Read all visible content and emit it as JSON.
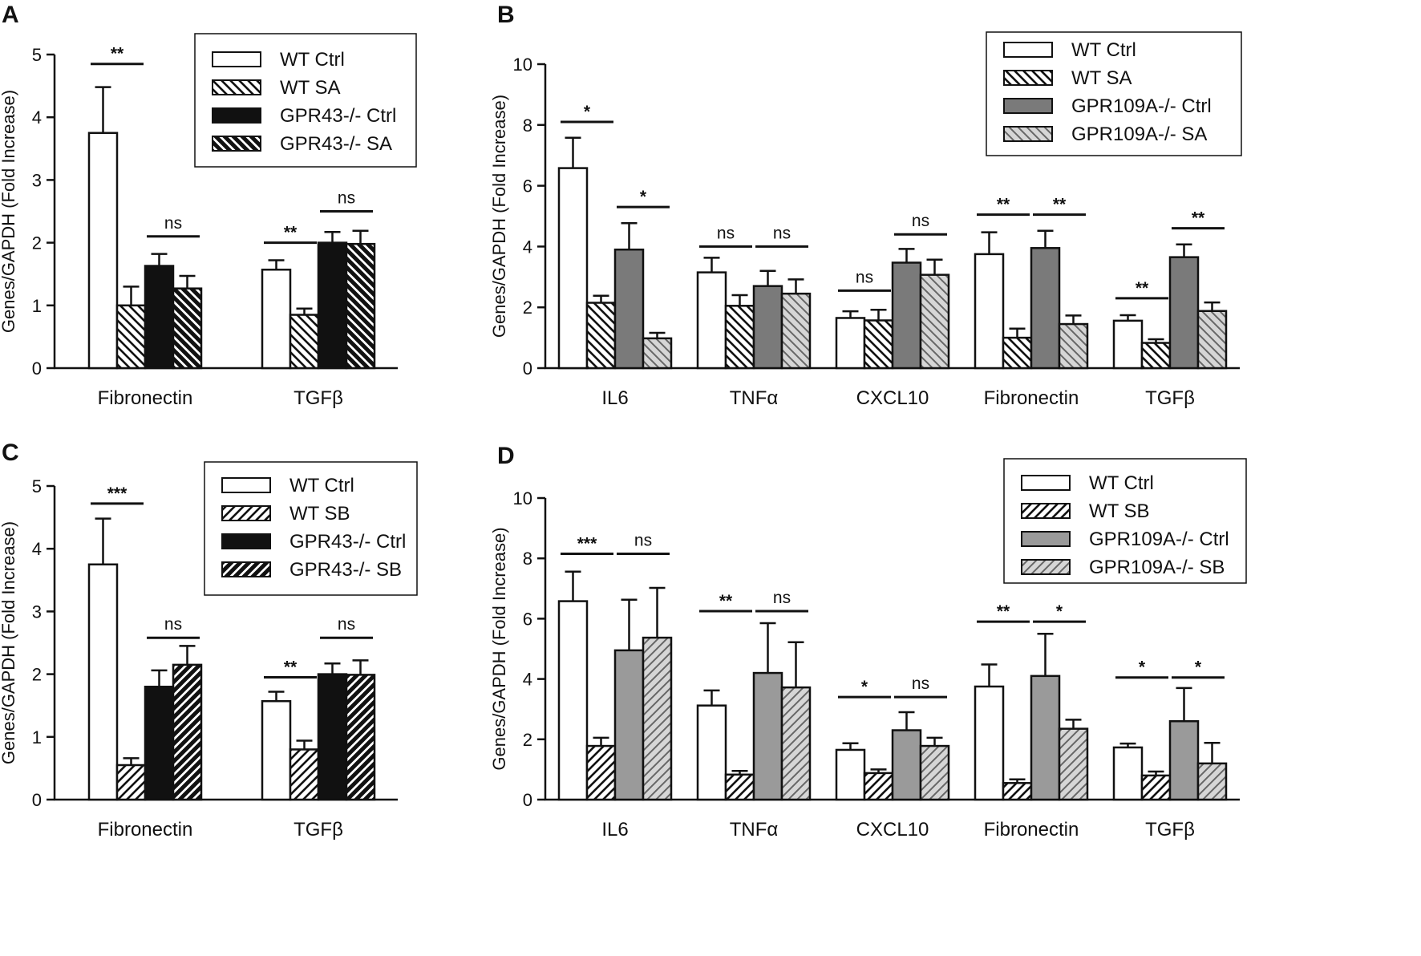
{
  "chart_data": [
    {
      "panel": "A",
      "type": "bar",
      "ylabel": "Genes/GAPDH (Fold Increase)",
      "ylim": [
        0,
        5
      ],
      "yticks": [
        0,
        1,
        2,
        3,
        4,
        5
      ],
      "categories": [
        "Fibronectin",
        "TGFβ"
      ],
      "legend_position": "top-right",
      "series": [
        {
          "name": "WT Ctrl",
          "style": "white",
          "values": [
            3.75,
            1.57
          ],
          "errors": [
            0.73,
            0.15
          ]
        },
        {
          "name": "WT SA",
          "style": "hatch-back",
          "values": [
            1.0,
            0.85
          ],
          "errors": [
            0.3,
            0.1
          ]
        },
        {
          "name": "GPR43-/- Ctrl",
          "style": "black",
          "values": [
            1.63,
            2.0
          ],
          "errors": [
            0.19,
            0.17
          ]
        },
        {
          "name": "GPR43-/- SA",
          "style": "hatch-back-black",
          "values": [
            1.27,
            1.98
          ],
          "errors": [
            0.2,
            0.21
          ]
        }
      ],
      "significance": [
        {
          "category": 0,
          "from": 0,
          "to": 1,
          "label": "**",
          "y": 4.85
        },
        {
          "category": 0,
          "from": 2,
          "to": 3,
          "label": "ns",
          "y": 2.1
        },
        {
          "category": 1,
          "from": 0,
          "to": 1,
          "label": "**",
          "y": 2.0
        },
        {
          "category": 1,
          "from": 2,
          "to": 3,
          "label": "ns",
          "y": 2.5
        }
      ]
    },
    {
      "panel": "B",
      "type": "bar",
      "ylabel": "Genes/GAPDH (Fold Increase)",
      "ylim": [
        0,
        10
      ],
      "yticks": [
        0,
        2,
        4,
        6,
        8,
        10
      ],
      "categories": [
        "IL6",
        "TNFα",
        "CXCL10",
        "Fibronectin",
        "TGFβ"
      ],
      "legend_position": "top-right",
      "series": [
        {
          "name": "WT Ctrl",
          "style": "white",
          "values": [
            6.58,
            3.15,
            1.65,
            3.75,
            1.56
          ],
          "errors": [
            1.0,
            0.48,
            0.22,
            0.72,
            0.18
          ]
        },
        {
          "name": "WT SA",
          "style": "hatch-back",
          "values": [
            2.15,
            2.05,
            1.57,
            1.0,
            0.83
          ],
          "errors": [
            0.23,
            0.35,
            0.35,
            0.3,
            0.12
          ]
        },
        {
          "name": "GPR109A-/- Ctrl",
          "style": "darkgray",
          "values": [
            3.9,
            2.7,
            3.47,
            3.95,
            3.65
          ],
          "errors": [
            0.87,
            0.5,
            0.45,
            0.57,
            0.42
          ]
        },
        {
          "name": "GPR109A-/- SA",
          "style": "hatch-back-lightgray",
          "values": [
            0.98,
            2.45,
            3.07,
            1.45,
            1.88
          ],
          "errors": [
            0.18,
            0.47,
            0.5,
            0.28,
            0.28
          ]
        }
      ],
      "significance": [
        {
          "category": 0,
          "from": 0,
          "to": 1,
          "label": "*",
          "y": 8.1
        },
        {
          "category": 0,
          "from": 2,
          "to": 3,
          "label": "*",
          "y": 5.3
        },
        {
          "category": 1,
          "from": 0,
          "to": 1,
          "label": "ns",
          "y": 4.0
        },
        {
          "category": 1,
          "from": 2,
          "to": 3,
          "label": "ns",
          "y": 4.0
        },
        {
          "category": 2,
          "from": 0,
          "to": 1,
          "label": "ns",
          "y": 2.55
        },
        {
          "category": 2,
          "from": 2,
          "to": 3,
          "label": "ns",
          "y": 4.4
        },
        {
          "category": 3,
          "from": 0,
          "to": 1,
          "label": "**",
          "y": 5.05
        },
        {
          "category": 3,
          "from": 2,
          "to": 3,
          "label": "**",
          "y": 5.05
        },
        {
          "category": 4,
          "from": 0,
          "to": 1,
          "label": "**",
          "y": 2.3
        },
        {
          "category": 4,
          "from": 2,
          "to": 3,
          "label": "**",
          "y": 4.6
        }
      ]
    },
    {
      "panel": "C",
      "type": "bar",
      "ylabel": "Genes/GAPDH (Fold Increase)",
      "ylim": [
        0,
        5
      ],
      "yticks": [
        0,
        1,
        2,
        3,
        4,
        5
      ],
      "categories": [
        "Fibronectin",
        "TGFβ"
      ],
      "legend_position": "top-right",
      "series": [
        {
          "name": "WT Ctrl",
          "style": "white",
          "values": [
            3.75,
            1.57
          ],
          "errors": [
            0.73,
            0.15
          ]
        },
        {
          "name": "WT SB",
          "style": "hatch-fwd",
          "values": [
            0.55,
            0.8
          ],
          "errors": [
            0.11,
            0.14
          ]
        },
        {
          "name": "GPR43-/- Ctrl",
          "style": "black",
          "values": [
            1.8,
            2.0
          ],
          "errors": [
            0.26,
            0.17
          ]
        },
        {
          "name": "GPR43-/- SB",
          "style": "hatch-fwd-black",
          "values": [
            2.15,
            1.99
          ],
          "errors": [
            0.3,
            0.23
          ]
        }
      ],
      "significance": [
        {
          "category": 0,
          "from": 0,
          "to": 1,
          "label": "***",
          "y": 4.72
        },
        {
          "category": 0,
          "from": 2,
          "to": 3,
          "label": "ns",
          "y": 2.58
        },
        {
          "category": 1,
          "from": 0,
          "to": 1,
          "label": "**",
          "y": 1.95
        },
        {
          "category": 1,
          "from": 2,
          "to": 3,
          "label": "ns",
          "y": 2.58
        }
      ]
    },
    {
      "panel": "D",
      "type": "bar",
      "ylabel": "Genes/GAPDH (Fold Increase)",
      "ylim": [
        0,
        10
      ],
      "yticks": [
        0,
        2,
        4,
        6,
        8,
        10
      ],
      "categories": [
        "IL6",
        "TNFα",
        "CXCL10",
        "Fibronectin",
        "TGFβ"
      ],
      "legend_position": "top-right",
      "series": [
        {
          "name": "WT Ctrl",
          "style": "white",
          "values": [
            6.58,
            3.12,
            1.65,
            3.75,
            1.73
          ],
          "errors": [
            0.98,
            0.5,
            0.22,
            0.73,
            0.13
          ]
        },
        {
          "name": "WT SB",
          "style": "hatch-fwd",
          "values": [
            1.78,
            0.83,
            0.88,
            0.55,
            0.8
          ],
          "errors": [
            0.27,
            0.12,
            0.12,
            0.12,
            0.13
          ]
        },
        {
          "name": "GPR109A-/- Ctrl",
          "style": "gray",
          "values": [
            4.95,
            4.2,
            2.3,
            4.1,
            2.6
          ],
          "errors": [
            1.68,
            1.65,
            0.6,
            1.4,
            1.1
          ]
        },
        {
          "name": "GPR109A-/- SB",
          "style": "hatch-fwd-lightgray",
          "values": [
            5.37,
            3.72,
            1.78,
            2.35,
            1.2
          ],
          "errors": [
            1.65,
            1.5,
            0.27,
            0.3,
            0.68
          ]
        }
      ],
      "significance": [
        {
          "category": 0,
          "from": 0,
          "to": 1,
          "label": "***",
          "y": 8.15
        },
        {
          "category": 0,
          "from": 2,
          "to": 3,
          "label": "ns",
          "y": 8.15
        },
        {
          "category": 1,
          "from": 0,
          "to": 1,
          "label": "**",
          "y": 6.25
        },
        {
          "category": 1,
          "from": 2,
          "to": 3,
          "label": "ns",
          "y": 6.25
        },
        {
          "category": 2,
          "from": 0,
          "to": 1,
          "label": "*",
          "y": 3.4
        },
        {
          "category": 2,
          "from": 2,
          "to": 3,
          "label": "ns",
          "y": 3.4
        },
        {
          "category": 3,
          "from": 0,
          "to": 1,
          "label": "**",
          "y": 5.9
        },
        {
          "category": 3,
          "from": 2,
          "to": 3,
          "label": "*",
          "y": 5.9
        },
        {
          "category": 4,
          "from": 0,
          "to": 1,
          "label": "*",
          "y": 4.05
        },
        {
          "category": 4,
          "from": 2,
          "to": 3,
          "label": "*",
          "y": 4.05
        }
      ]
    }
  ]
}
